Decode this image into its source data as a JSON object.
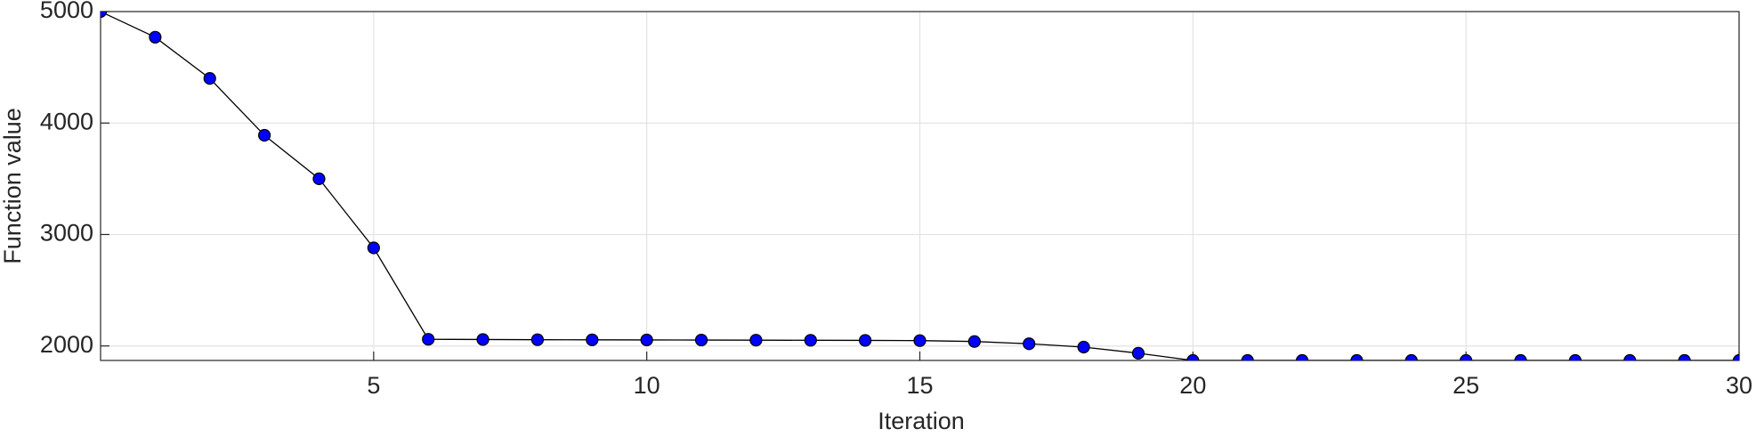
{
  "chart_data": {
    "type": "line",
    "x_label": "Iteration",
    "y_label": "Function value",
    "x": [
      0,
      1,
      2,
      3,
      4,
      5,
      6,
      7,
      8,
      9,
      10,
      11,
      12,
      13,
      14,
      15,
      16,
      17,
      18,
      19,
      20,
      21,
      22,
      23,
      24,
      25,
      26,
      27,
      28,
      29,
      30
    ],
    "series": [
      {
        "name": "Function value",
        "color": "#0000ff",
        "values": [
          5000,
          4770,
          4400,
          3890,
          3500,
          2880,
          2060,
          2058,
          2056,
          2055,
          2054,
          2053,
          2052,
          2051,
          2050,
          2048,
          2040,
          2020,
          1990,
          1935,
          1870,
          1870,
          1870,
          1870,
          1870,
          1870,
          1870,
          1870,
          1870,
          1870,
          1870
        ]
      }
    ],
    "xlim": [
      0,
      30
    ],
    "xticks": [
      5,
      10,
      15,
      20,
      25,
      30
    ],
    "ylim": [
      1870,
      5000
    ],
    "yticks": [
      2000,
      3000,
      4000,
      5000
    ],
    "grid": true
  }
}
